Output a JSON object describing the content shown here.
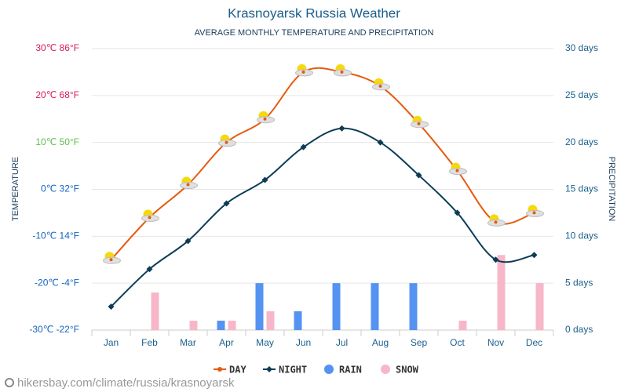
{
  "chart_data": {
    "type": "line",
    "title": "Krasnoyarsk Russia Weather",
    "subtitle": "AVERAGE MONTHLY TEMPERATURE AND PRECIPITATION",
    "y_label": "TEMPERATURE",
    "y2_label": "PRECIPITATION",
    "source": "hikersbay.com/climate/russia/krasnoyarsk",
    "categories": [
      "Jan",
      "Feb",
      "Mar",
      "Apr",
      "May",
      "Jun",
      "Jul",
      "Aug",
      "Sep",
      "Oct",
      "Nov",
      "Dec"
    ],
    "ylim": [
      -30,
      30
    ],
    "yticks": [
      {
        "value": -30,
        "label": "-30℃ -22°F",
        "color": "#1565c0"
      },
      {
        "value": -20,
        "label": "-20℃ -4°F",
        "color": "#1565c0"
      },
      {
        "value": -10,
        "label": "-10℃ 14°F",
        "color": "#1565c0"
      },
      {
        "value": 0,
        "label": "0℃ 32°F",
        "color": "#1565c0"
      },
      {
        "value": 10,
        "label": "10℃ 50°F",
        "color": "#5cc04a"
      },
      {
        "value": 20,
        "label": "20℃ 68°F",
        "color": "#d81b60"
      },
      {
        "value": 30,
        "label": "30℃ 86°F",
        "color": "#d81b60"
      }
    ],
    "y2lim": [
      0,
      30
    ],
    "y2ticks": [
      {
        "value": 0,
        "label": "0 days"
      },
      {
        "value": 5,
        "label": "5 days"
      },
      {
        "value": 10,
        "label": "10 days"
      },
      {
        "value": 15,
        "label": "15 days"
      },
      {
        "value": 20,
        "label": "20 days"
      },
      {
        "value": 25,
        "label": "25 days"
      },
      {
        "value": 30,
        "label": "30 days"
      }
    ],
    "grid": true,
    "series": [
      {
        "name": "DAY",
        "type": "line",
        "marker": "circle",
        "color": "#e65a0f",
        "values": [
          -15,
          -6,
          1,
          10,
          15,
          25,
          25,
          22,
          14,
          4,
          -7,
          -5
        ]
      },
      {
        "name": "NIGHT",
        "type": "line",
        "marker": "diamond",
        "color": "#0d3d56",
        "values": [
          -25,
          -17,
          -11,
          -3,
          2,
          9,
          13,
          10,
          3,
          -5,
          -15,
          -14
        ]
      },
      {
        "name": "RAIN",
        "type": "bar",
        "axis": "y2",
        "color": "#5593f2",
        "values": [
          0,
          0,
          0,
          1,
          5,
          2,
          5,
          5,
          5,
          0,
          0,
          0
        ]
      },
      {
        "name": "SNOW",
        "type": "bar",
        "axis": "y2",
        "color": "#f7b7c8",
        "values": [
          0,
          4,
          1,
          1,
          2,
          0,
          0,
          0,
          0,
          1,
          8,
          5
        ]
      }
    ]
  }
}
